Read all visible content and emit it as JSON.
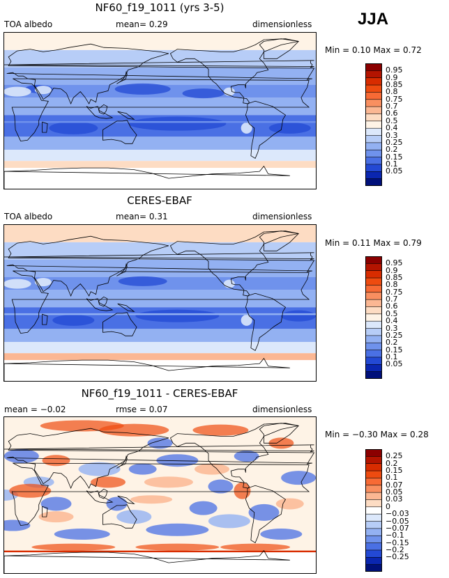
{
  "season": "JJA",
  "panels": [
    {
      "title": "NF60_f19_1011 (yrs 3-5)",
      "left_label": "TOA albedo",
      "center_label": "mean=    0.29",
      "right_label": "dimensionless",
      "minmax": "Min =    0.10 Max =    0.72",
      "colorbar": {
        "labels": [
          "0.95",
          "0.9",
          "0.85",
          "0.8",
          "0.75",
          "0.7",
          "0.6",
          "0.5",
          "0.4",
          "0.3",
          "0.25",
          "0.2",
          "0.15",
          "0.1",
          "0.05"
        ],
        "colors": [
          "#8b0000",
          "#b41400",
          "#d82c00",
          "#ee4b10",
          "#f76a35",
          "#f98f60",
          "#fbb793",
          "#fddcc3",
          "#fef3e6",
          "#dce8fb",
          "#b7cdf7",
          "#93b1f2",
          "#6f92ec",
          "#4a70e4",
          "#2349d4",
          "#0a26b0",
          "#00107a"
        ]
      },
      "map_style": "model"
    },
    {
      "title": "CERES-EBAF",
      "left_label": "TOA albedo",
      "center_label": "mean=    0.31",
      "right_label": "dimensionless",
      "minmax": "Min =    0.11 Max =    0.79",
      "colorbar": {
        "labels": [
          "0.95",
          "0.9",
          "0.85",
          "0.8",
          "0.75",
          "0.7",
          "0.6",
          "0.5",
          "0.4",
          "0.3",
          "0.25",
          "0.2",
          "0.15",
          "0.1",
          "0.05"
        ],
        "colors": [
          "#8b0000",
          "#b41400",
          "#d82c00",
          "#ee4b10",
          "#f76a35",
          "#f98f60",
          "#fbb793",
          "#fddcc3",
          "#fef3e6",
          "#dce8fb",
          "#b7cdf7",
          "#93b1f2",
          "#6f92ec",
          "#4a70e4",
          "#2349d4",
          "#0a26b0",
          "#00107a"
        ]
      },
      "map_style": "obs"
    },
    {
      "title": "NF60_f19_1011 - CERES-EBAF",
      "left_label": "mean =   −0.02",
      "center_label": "rmse =    0.07",
      "right_label": "dimensionless",
      "minmax": "Min =  −0.30 Max =    0.28",
      "colorbar": {
        "labels": [
          "0.25",
          "0.2",
          "0.15",
          "0.1",
          "0.07",
          "0.05",
          "0.03",
          "0",
          "−0.03",
          "−0.05",
          "−0.07",
          "−0.1",
          "−0.15",
          "−0.2",
          "−0.25"
        ],
        "colors": [
          "#8b0000",
          "#b41400",
          "#d82c00",
          "#ee4b10",
          "#f76a35",
          "#f98f60",
          "#fbb793",
          "#fddcc3",
          "#ffffff",
          "#dce8fb",
          "#b7cdf7",
          "#93b1f2",
          "#6f92ec",
          "#4a70e4",
          "#2349d4",
          "#0a26b0",
          "#00107a"
        ]
      },
      "map_style": "diff"
    }
  ],
  "chart_data": {
    "type": "heatmap",
    "season": "JJA",
    "panels": [
      {
        "title": "NF60_f19_1011 (yrs 3-5)",
        "variable": "TOA albedo",
        "units": "dimensionless",
        "mean": 0.29,
        "min": 0.1,
        "max": 0.72,
        "levels": [
          0.05,
          0.1,
          0.15,
          0.2,
          0.25,
          0.3,
          0.4,
          0.5,
          0.6,
          0.7,
          0.75,
          0.8,
          0.85,
          0.9,
          0.95
        ]
      },
      {
        "title": "CERES-EBAF",
        "variable": "TOA albedo",
        "units": "dimensionless",
        "mean": 0.31,
        "min": 0.11,
        "max": 0.79,
        "levels": [
          0.05,
          0.1,
          0.15,
          0.2,
          0.25,
          0.3,
          0.4,
          0.5,
          0.6,
          0.7,
          0.75,
          0.8,
          0.85,
          0.9,
          0.95
        ]
      },
      {
        "title": "NF60_f19_1011 - CERES-EBAF",
        "units": "dimensionless",
        "mean": -0.02,
        "rmse": 0.07,
        "min": -0.3,
        "max": 0.28,
        "levels": [
          -0.25,
          -0.2,
          -0.15,
          -0.1,
          -0.07,
          -0.05,
          -0.03,
          0,
          0.03,
          0.05,
          0.07,
          0.1,
          0.15,
          0.2,
          0.25
        ]
      }
    ]
  }
}
